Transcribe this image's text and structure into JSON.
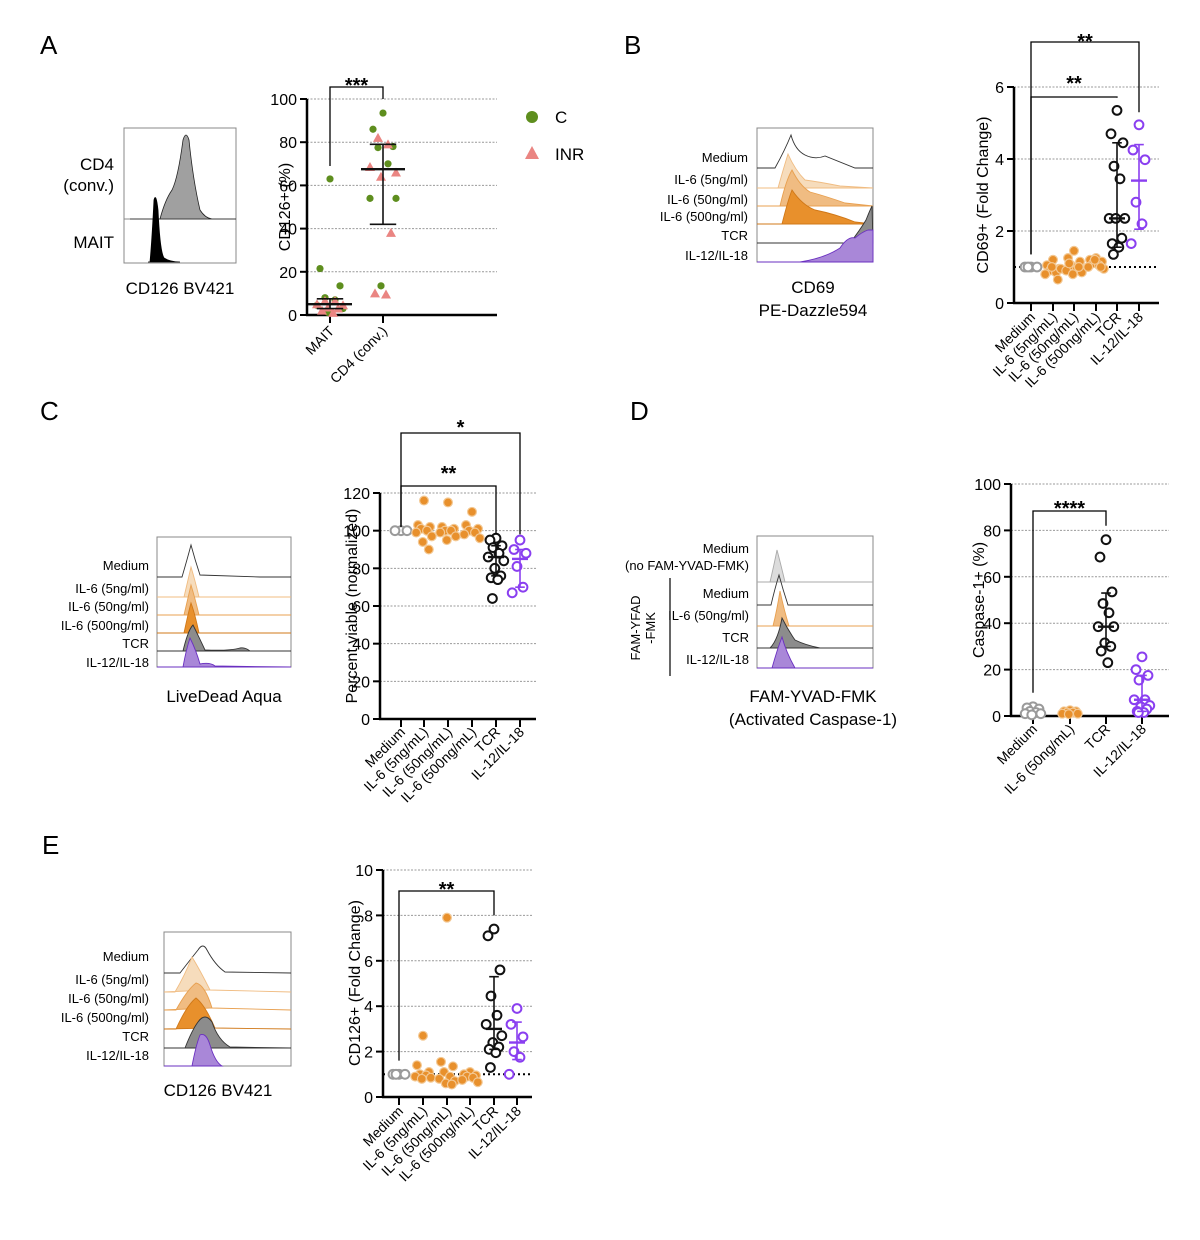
{
  "colors": {
    "green": "#5e8e1e",
    "salmon": "#ea8582",
    "gray": "#9a9a9a",
    "orange": "#e8902c",
    "orange_light": "#f6dcbc",
    "orange_mid": "#f0bc82",
    "black": "#111111",
    "purple": "#8a3ff0",
    "purple_fill": "#a987d8",
    "hist_gray": "#8c8c8c",
    "hist_light": "#dcdcdc"
  },
  "panels": {
    "A": {
      "letter": "A",
      "histogram": {
        "rows": [
          "CD4\n(conv.)",
          "MAIT"
        ],
        "row_labels_line1": [
          "CD4",
          "MAIT"
        ],
        "row_labels_line2": [
          "(conv.)",
          ""
        ],
        "xlabel": "CD126 BV421"
      },
      "legend": [
        {
          "label": "C",
          "shape": "circle",
          "color": "#5e8e1e"
        },
        {
          "label": "INR",
          "shape": "triangle",
          "color": "#ea8582"
        }
      ]
    },
    "B": {
      "letter": "B",
      "histogram": {
        "rows": [
          "Medium",
          "IL-6 (5ng/ml)",
          "IL-6 (50ng/ml)",
          "IL-6 (500ng/ml)",
          "TCR",
          "IL-12/IL-18"
        ],
        "xlabel_line1": "CD69",
        "xlabel_line2": "PE-Dazzle594"
      }
    },
    "C": {
      "letter": "C",
      "histogram": {
        "rows": [
          "Medium",
          "IL-6 (5ng/ml)",
          "IL-6 (50ng/ml)",
          "IL-6 (500ng/ml)",
          "TCR",
          "IL-12/IL-18"
        ],
        "xlabel": "LiveDead Aqua"
      }
    },
    "D": {
      "letter": "D",
      "histogram": {
        "rows": [
          "Medium",
          "(no FAM-YVAD-FMK)",
          "Medium",
          "IL-6 (50ng/ml)",
          "TCR",
          "IL-12/IL-18"
        ],
        "group_label_line1": "FAM-YFAD",
        "group_label_line2": "-FMK",
        "xlabel_line1": "FAM-YVAD-FMK",
        "xlabel_line2": "(Activated Caspase-1)"
      }
    },
    "E": {
      "letter": "E",
      "histogram": {
        "rows": [
          "Medium",
          "IL-6 (5ng/ml)",
          "IL-6 (50ng/ml)",
          "IL-6 (500ng/ml)",
          "TCR",
          "IL-12/IL-18"
        ],
        "xlabel": "CD126 BV421"
      }
    }
  },
  "chart_data": [
    {
      "id": "A",
      "type": "scatter",
      "title": "",
      "xlabel": "",
      "ylabel": "CD126+ (%)",
      "ylim": [
        0,
        100
      ],
      "yticks": [
        0,
        20,
        40,
        60,
        80,
        100
      ],
      "grid": true,
      "legend_position": "right",
      "categories": [
        "MAIT",
        "CD4 (conv.)"
      ],
      "series": [
        {
          "name": "C",
          "shape": "circle",
          "color": "#5e8e1e",
          "points": [
            [
              0,
              63
            ],
            [
              0,
              21.5
            ],
            [
              0,
              13.5
            ],
            [
              0,
              8
            ],
            [
              0,
              7
            ],
            [
              0,
              4.5
            ],
            [
              0,
              3
            ],
            [
              0,
              1.2
            ],
            [
              1,
              93.5
            ],
            [
              1,
              86
            ],
            [
              1,
              78
            ],
            [
              1,
              77.5
            ],
            [
              1,
              70
            ],
            [
              1,
              54
            ],
            [
              1,
              54
            ],
            [
              1,
              13.5
            ]
          ]
        },
        {
          "name": "INR",
          "shape": "triangle",
          "color": "#ea8582",
          "points": [
            [
              0,
              6.5
            ],
            [
              0,
              6.5
            ],
            [
              0,
              5
            ],
            [
              0,
              4.5
            ],
            [
              0,
              3.5
            ],
            [
              0,
              3
            ],
            [
              0,
              2
            ],
            [
              0,
              1
            ],
            [
              1,
              82
            ],
            [
              1,
              79
            ],
            [
              1,
              68.5
            ],
            [
              1,
              66
            ],
            [
              1,
              64
            ],
            [
              1,
              38
            ],
            [
              1,
              10
            ],
            [
              1,
              9.5
            ]
          ]
        }
      ],
      "summary": [
        {
          "category": "MAIT",
          "median": 5,
          "lower": 3,
          "upper": 7.5,
          "color": "#111111"
        },
        {
          "category": "CD4 (conv.)",
          "median": 67.5,
          "lower": 42,
          "upper": 79,
          "color": "#111111"
        }
      ],
      "significance": [
        {
          "from": "MAIT",
          "to": "CD4 (conv.)",
          "label": "***"
        }
      ]
    },
    {
      "id": "B",
      "type": "scatter",
      "xlabel": "",
      "ylabel": "CD69+ (Fold Change)",
      "ylim": [
        0,
        6
      ],
      "yticks": [
        0,
        2,
        4,
        6
      ],
      "grid": true,
      "reference_line": 1,
      "categories": [
        "Medium",
        "IL-6 (5ng/mL)",
        "IL-6 (50ng/mL)",
        "IL-6 (500ng/mL)",
        "TCR",
        "IL-12/IL-18"
      ],
      "series": [
        {
          "name": "Medium",
          "color": "#9a9a9a",
          "filled": false,
          "values": [
            1,
            1,
            1,
            1
          ]
        },
        {
          "name": "IL-6 (5ng/mL)",
          "color": "#e8902c",
          "filled": true,
          "values": [
            1.2,
            1.05,
            0.95,
            0.9,
            0.85,
            0.8,
            0.95,
            1.0,
            0.65
          ]
        },
        {
          "name": "IL-6 (50ng/mL)",
          "color": "#e8902c",
          "filled": true,
          "values": [
            1.45,
            1.25,
            1.15,
            1.05,
            0.95,
            0.9,
            0.85,
            0.8,
            1.0,
            1.1
          ]
        },
        {
          "name": "IL-6 (500ng/mL)",
          "color": "#e8902c",
          "filled": true,
          "values": [
            1.25,
            1.2,
            1.15,
            1.1,
            1.05,
            1.0,
            0.95,
            1.2,
            1.0
          ]
        },
        {
          "name": "TCR",
          "color": "#111111",
          "filled": false,
          "values": [
            5.35,
            4.7,
            4.45,
            3.8,
            3.45,
            2.35,
            2.35,
            2.35,
            1.8,
            1.65,
            1.55,
            1.35
          ]
        },
        {
          "name": "IL-12/IL-18",
          "color": "#8a3ff0",
          "filled": false,
          "values": [
            4.95,
            4.25,
            3.98,
            2.8,
            2.2,
            1.65
          ]
        }
      ],
      "summary": [
        {
          "category": "TCR",
          "median": 2.35,
          "lower": 1.55,
          "upper": 4.45,
          "color": "#111111"
        },
        {
          "category": "IL-12/IL-18",
          "median": 3.4,
          "lower": 2.05,
          "upper": 4.4,
          "color": "#8a3ff0"
        }
      ],
      "significance": [
        {
          "from": "Medium",
          "to": "TCR",
          "label": "**"
        },
        {
          "from": "Medium",
          "to": "IL-12/IL-18",
          "label": "**"
        }
      ]
    },
    {
      "id": "C",
      "type": "scatter",
      "xlabel": "",
      "ylabel": "Percent viable (normalized)",
      "ylim": [
        0,
        120
      ],
      "yticks": [
        0,
        20,
        40,
        60,
        80,
        100,
        120
      ],
      "grid": true,
      "categories": [
        "Medium",
        "IL-6 (5ng/mL)",
        "IL-6 (50ng/mL)",
        "IL-6 (500ng/mL)",
        "TCR",
        "IL-12/IL-18"
      ],
      "series": [
        {
          "name": "Medium",
          "color": "#9a9a9a",
          "filled": false,
          "values": [
            100,
            100,
            100
          ]
        },
        {
          "name": "IL-6 (5ng/mL)",
          "color": "#e8902c",
          "filled": true,
          "values": [
            116,
            103,
            102,
            101,
            100,
            99,
            97,
            94,
            90
          ]
        },
        {
          "name": "IL-6 (50ng/mL)",
          "color": "#e8902c",
          "filled": true,
          "values": [
            115,
            102,
            101,
            100,
            100,
            99,
            97,
            95
          ]
        },
        {
          "name": "IL-6 (500ng/mL)",
          "color": "#e8902c",
          "filled": true,
          "values": [
            110,
            103,
            101,
            100,
            99,
            98,
            96
          ]
        },
        {
          "name": "TCR",
          "color": "#111111",
          "filled": false,
          "values": [
            96,
            95,
            92,
            91,
            88,
            86,
            84,
            80,
            76,
            75,
            74,
            64
          ]
        },
        {
          "name": "IL-12/IL-18",
          "color": "#8a3ff0",
          "filled": false,
          "values": [
            95,
            90,
            88,
            81,
            70,
            67
          ]
        }
      ],
      "summary": [
        {
          "category": "TCR",
          "median": 86,
          "lower": 76,
          "upper": 92,
          "color": "#111111"
        },
        {
          "category": "IL-12/IL-18",
          "median": 85,
          "lower": 70,
          "upper": 90,
          "color": "#8a3ff0"
        }
      ],
      "significance": [
        {
          "from": "Medium",
          "to": "TCR",
          "label": "**"
        },
        {
          "from": "Medium",
          "to": "IL-12/IL-18",
          "label": "*"
        }
      ]
    },
    {
      "id": "D",
      "type": "scatter",
      "xlabel": "",
      "ylabel": "Caspase-1+ (%)",
      "ylim": [
        0,
        100
      ],
      "yticks": [
        0,
        20,
        40,
        60,
        80,
        100
      ],
      "grid": true,
      "categories": [
        "Medium",
        "IL-6 (50ng/mL)",
        "TCR",
        "IL-12/IL-18"
      ],
      "series": [
        {
          "name": "Medium",
          "color": "#9a9a9a",
          "filled": false,
          "values": [
            4,
            3.5,
            3,
            2,
            1.5,
            1,
            1,
            0.5
          ]
        },
        {
          "name": "IL-6 (50ng/mL)",
          "color": "#e8902c",
          "filled": true,
          "values": [
            2.5,
            2,
            2,
            1.5,
            1.5,
            1,
            1,
            0.8
          ]
        },
        {
          "name": "TCR",
          "color": "#111111",
          "filled": false,
          "values": [
            76,
            68.5,
            53.5,
            48.5,
            44.5,
            38.5,
            38.5,
            31.5,
            30,
            28,
            23
          ]
        },
        {
          "name": "IL-12/IL-18",
          "color": "#8a3ff0",
          "filled": false,
          "values": [
            25.5,
            20,
            17.5,
            15.5,
            7,
            7,
            4.5,
            4,
            3,
            2,
            1.5,
            1.5
          ]
        }
      ],
      "summary": [
        {
          "category": "TCR",
          "median": 38.5,
          "lower": 30,
          "upper": 53,
          "color": "#111111"
        },
        {
          "category": "IL-12/IL-18",
          "median": 7,
          "lower": 2,
          "upper": 17.5,
          "color": "#8a3ff0"
        }
      ],
      "significance": [
        {
          "from": "Medium",
          "to": "TCR",
          "label": "****"
        }
      ]
    },
    {
      "id": "E",
      "type": "scatter",
      "xlabel": "",
      "ylabel": "CD126+ (Fold Change)",
      "ylim": [
        0,
        10
      ],
      "yticks": [
        0,
        2,
        4,
        6,
        8,
        10
      ],
      "grid": true,
      "reference_line": 1,
      "categories": [
        "Medium",
        "IL-6 (5ng/mL)",
        "IL-6 (50ng/mL)",
        "IL-6 (500ng/mL)",
        "TCR",
        "IL-12/IL-18"
      ],
      "series": [
        {
          "name": "Medium",
          "color": "#9a9a9a",
          "filled": false,
          "values": [
            1,
            1,
            1,
            1
          ]
        },
        {
          "name": "IL-6 (5ng/mL)",
          "color": "#e8902c",
          "filled": true,
          "values": [
            2.7,
            1.4,
            1.1,
            1.0,
            0.95,
            0.9,
            0.85,
            0.8
          ]
        },
        {
          "name": "IL-6 (50ng/mL)",
          "color": "#e8902c",
          "filled": true,
          "values": [
            7.9,
            1.55,
            1.35,
            1.1,
            0.9,
            0.8,
            0.7,
            0.6,
            0.55
          ]
        },
        {
          "name": "IL-6 (500ng/mL)",
          "color": "#e8902c",
          "filled": true,
          "values": [
            1.1,
            1.0,
            0.95,
            0.9,
            0.85,
            0.75,
            0.65
          ]
        },
        {
          "name": "TCR",
          "color": "#111111",
          "filled": false,
          "values": [
            7.4,
            7.1,
            5.6,
            4.45,
            3.6,
            3.2,
            2.7,
            2.4,
            2.2,
            2.1,
            1.95,
            1.3
          ]
        },
        {
          "name": "IL-12/IL-18",
          "color": "#8a3ff0",
          "filled": false,
          "values": [
            3.9,
            3.2,
            2.65,
            2.0,
            1.75,
            1.0
          ]
        }
      ],
      "summary": [
        {
          "category": "TCR",
          "median": 3.0,
          "lower": 2.1,
          "upper": 5.3,
          "color": "#111111"
        },
        {
          "category": "IL-12/IL-18",
          "median": 2.4,
          "lower": 1.65,
          "upper": 3.3,
          "color": "#8a3ff0"
        }
      ],
      "significance": [
        {
          "from": "Medium",
          "to": "TCR",
          "label": "**"
        }
      ]
    }
  ]
}
